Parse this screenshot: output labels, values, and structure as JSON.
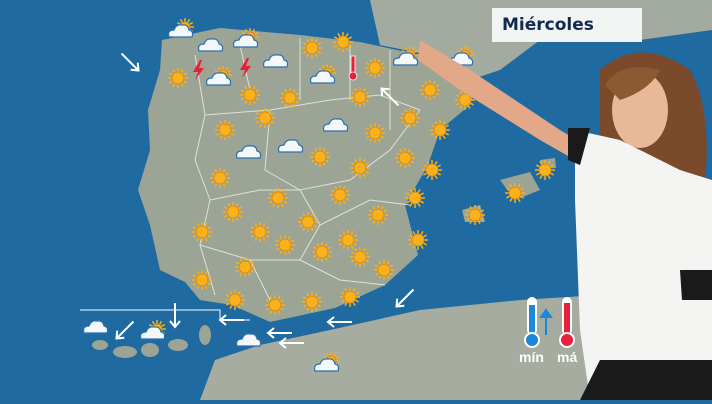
{
  "header": {
    "day_label": "Miércoles"
  },
  "legend": {
    "min_label": "mín",
    "max_label": "má",
    "min_color": "#1e88d8",
    "max_color": "#e8203a"
  },
  "colors": {
    "sea": "#1f6aa0",
    "land": "#9aa396",
    "border": "#e8ecea",
    "sun": "#f7b21c"
  },
  "map_icons": [
    "cloud-sun",
    "cloud",
    "cloud-sun",
    "cloud",
    "cloud-sun",
    "cloud-sun",
    "cloud",
    "cloud",
    "cloud",
    "cloud-sun",
    "cloud-sun",
    "cloud",
    "cloud-sun",
    "cloud",
    "cloud-sun",
    "storm",
    "storm",
    "thermometer-hot",
    "sun",
    "sun",
    "sun",
    "sun",
    "sun",
    "sun",
    "sun",
    "sun",
    "sun",
    "sun",
    "sun",
    "sun",
    "sun",
    "sun",
    "sun",
    "sun",
    "sun",
    "sun",
    "sun",
    "sun",
    "sun",
    "sun",
    "sun",
    "sun",
    "sun",
    "sun",
    "sun",
    "sun",
    "sun",
    "sun",
    "sun",
    "sun",
    "sun",
    "sun",
    "sun",
    "sun",
    "sun",
    "sun",
    "sun",
    "sun",
    "sun",
    "sun"
  ],
  "wind_arrows": [
    "down-right",
    "up-left",
    "down-left",
    "down-left",
    "down",
    "left",
    "left",
    "left",
    "left"
  ]
}
